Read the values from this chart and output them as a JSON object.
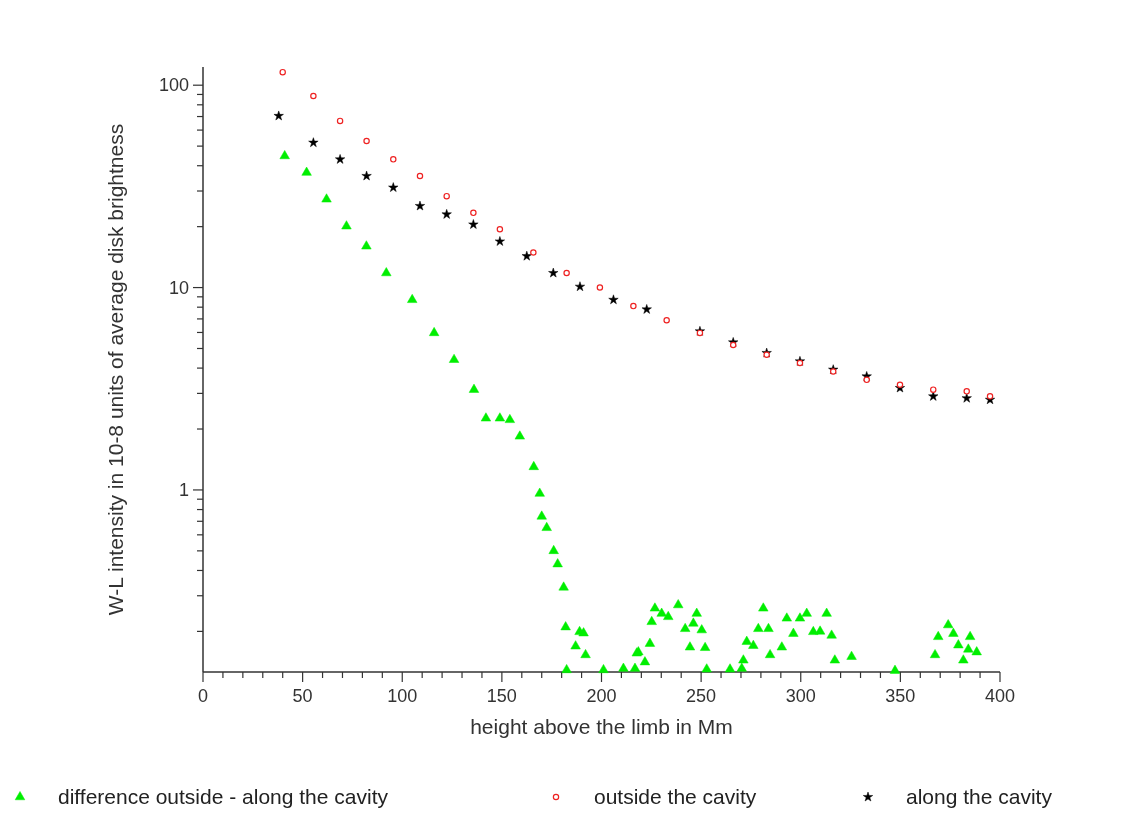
{
  "chart_data": {
    "type": "scatter",
    "xlabel": "height above the limb in Mm",
    "ylabel": "W-L intensity in 10-8 units of average disk brightness",
    "log": "y",
    "grid": false,
    "legend": "bottom",
    "xlim": [
      0,
      400
    ],
    "ylim": [
      0.126,
      123
    ],
    "xticks": [
      0,
      {
        "value": 10,
        "label": null
      },
      {
        "value": 20,
        "label": null
      },
      {
        "value": 30,
        "label": null
      },
      {
        "value": 40,
        "label": null
      },
      50,
      {
        "value": 60,
        "label": null
      },
      {
        "value": 70,
        "label": null
      },
      {
        "value": 80,
        "label": null
      },
      {
        "value": 90,
        "label": null
      },
      100,
      {
        "value": 110,
        "label": null
      },
      {
        "value": 120,
        "label": null
      },
      {
        "value": 130,
        "label": null
      },
      {
        "value": 140,
        "label": null
      },
      150,
      {
        "value": 160,
        "label": null
      },
      {
        "value": 170,
        "label": null
      },
      {
        "value": 180,
        "label": null
      },
      {
        "value": 190,
        "label": null
      },
      200,
      {
        "value": 210,
        "label": null
      },
      {
        "value": 220,
        "label": null
      },
      {
        "value": 230,
        "label": null
      },
      {
        "value": 240,
        "label": null
      },
      250,
      {
        "value": 260,
        "label": null
      },
      {
        "value": 270,
        "label": null
      },
      {
        "value": 280,
        "label": null
      },
      {
        "value": 290,
        "label": null
      },
      300,
      {
        "value": 310,
        "label": null
      },
      {
        "value": 320,
        "label": null
      },
      {
        "value": 330,
        "label": null
      },
      {
        "value": 340,
        "label": null
      },
      350,
      {
        "value": 360,
        "label": null
      },
      {
        "value": 370,
        "label": null
      },
      {
        "value": 380,
        "label": null
      },
      {
        "value": 390,
        "label": null
      },
      400
    ],
    "yticks": [
      {
        "value": 0.2,
        "label": null
      },
      {
        "value": 0.3,
        "label": null
      },
      {
        "value": 0.4,
        "label": null
      },
      {
        "value": 0.5,
        "label": null
      },
      {
        "value": 0.6,
        "label": null
      },
      {
        "value": 0.7,
        "label": null
      },
      {
        "value": 0.8,
        "label": null
      },
      {
        "value": 0.9,
        "label": null
      },
      1,
      {
        "value": 2,
        "label": null
      },
      {
        "value": 3,
        "label": null
      },
      {
        "value": 4,
        "label": null
      },
      {
        "value": 5,
        "label": null
      },
      {
        "value": 6,
        "label": null
      },
      {
        "value": 7,
        "label": null
      },
      {
        "value": 8,
        "label": null
      },
      {
        "value": 9,
        "label": null
      },
      10,
      {
        "value": 20,
        "label": null
      },
      {
        "value": 30,
        "label": null
      },
      {
        "value": 40,
        "label": null
      },
      {
        "value": 50,
        "label": null
      },
      {
        "value": 60,
        "label": null
      },
      {
        "value": 70,
        "label": null
      },
      {
        "value": 80,
        "label": null
      },
      {
        "value": 90,
        "label": null
      },
      100
    ],
    "series": [
      {
        "name": "difference outside - along the cavity",
        "color": "#00ee00",
        "marker": "triangle",
        "x": [
          41,
          52,
          62,
          72,
          82,
          92,
          105,
          116,
          126,
          136,
          142,
          149,
          154,
          159,
          166,
          169,
          170,
          172.5,
          176,
          178,
          181,
          182,
          182.5,
          187,
          189,
          191,
          192,
          201,
          211,
          216.8,
          217.7,
          218.5,
          221.8,
          224.3,
          225.2,
          226.8,
          230.2,
          233.5,
          238.5,
          242,
          244.4,
          246.1,
          247.8,
          250.3,
          252,
          252.8,
          264.5,
          270.4,
          271.2,
          272.9,
          276.2,
          278.7,
          281.2,
          283.8,
          284.6,
          290.5,
          293,
          296.3,
          299.6,
          303,
          306.3,
          309.7,
          313,
          315.5,
          317.1,
          325.5,
          347.3,
          367.4,
          369,
          374,
          376.6,
          379.1,
          381.6,
          384.1,
          385,
          388.3
        ],
        "values": [
          44.7,
          37,
          27.3,
          20.1,
          16,
          11.8,
          8.7,
          5.97,
          4.4,
          3.13,
          2.26,
          2.26,
          2.22,
          1.84,
          1.3,
          0.96,
          0.74,
          0.65,
          0.5,
          0.43,
          0.33,
          0.21,
          0.129,
          0.169,
          0.199,
          0.196,
          0.153,
          0.129,
          0.131,
          0.131,
          0.156,
          0.158,
          0.141,
          0.174,
          0.223,
          0.26,
          0.245,
          0.236,
          0.27,
          0.206,
          0.167,
          0.219,
          0.245,
          0.203,
          0.166,
          0.13,
          0.13,
          0.131,
          0.144,
          0.178,
          0.17,
          0.206,
          0.26,
          0.206,
          0.153,
          0.167,
          0.232,
          0.195,
          0.232,
          0.245,
          0.199,
          0.2,
          0.245,
          0.191,
          0.144,
          0.15,
          0.128,
          0.153,
          0.188,
          0.215,
          0.195,
          0.171,
          0.144,
          0.163,
          0.188,
          0.158
        ]
      },
      {
        "name": "outside the cavity",
        "color": "#ee2222",
        "marker": "circle",
        "x": [
          40,
          55.4,
          68.8,
          82.1,
          95.5,
          108.9,
          122.3,
          135.7,
          149,
          165.8,
          182.5,
          199.2,
          216,
          232.7,
          249.4,
          266.1,
          282.9,
          299.6,
          316.3,
          333.1,
          349.8,
          366.5,
          383.3,
          395
        ],
        "values": [
          116,
          88.5,
          66.6,
          53,
          43,
          35.6,
          28.3,
          23.4,
          19.4,
          14.9,
          11.8,
          10,
          8.1,
          6.9,
          5.97,
          5.2,
          4.66,
          4.24,
          3.85,
          3.5,
          3.31,
          3.13,
          3.07,
          2.9
        ]
      },
      {
        "name": "along the cavity",
        "color": "#000000",
        "marker": "star",
        "x": [
          38,
          55.4,
          68.8,
          82.1,
          95.5,
          108.9,
          122.3,
          135.7,
          149,
          162.5,
          175.8,
          189.2,
          206,
          222.7,
          249.4,
          266.1,
          282.9,
          299.6,
          316.3,
          333.1,
          349.8,
          366.5,
          383.3,
          395
        ],
        "values": [
          70.5,
          52,
          43,
          35.6,
          31.2,
          25.3,
          23,
          20.5,
          16.9,
          14.3,
          11.8,
          10.1,
          8.7,
          7.8,
          6.08,
          5.36,
          4.75,
          4.32,
          3.93,
          3.64,
          3.19,
          2.9,
          2.84,
          2.79
        ]
      }
    ]
  }
}
